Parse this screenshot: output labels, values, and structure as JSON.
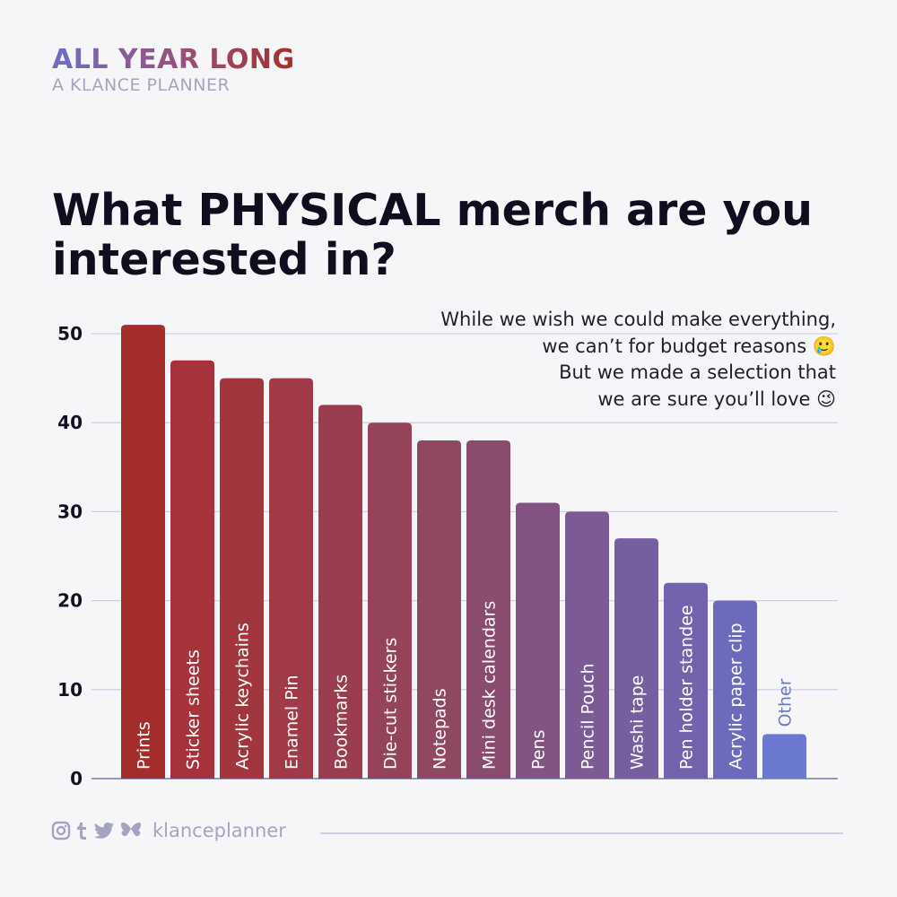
{
  "brand": {
    "title": "ALL YEAR LONG",
    "subtitle": "A KLANCE PLANNER"
  },
  "title": "What PHYSICAL merch are you interested in?",
  "note": {
    "lines": [
      "While we wish we could make everything,",
      "we can’t for budget reasons 🥲",
      "But we made a selection that",
      "we are sure you’ll love 😉"
    ]
  },
  "chart_data": {
    "type": "bar",
    "categories": [
      "Prints",
      "Sticker sheets",
      "Acrylic keychains",
      "Enamel Pin",
      "Bookmarks",
      "Die-cut stickers",
      "Notepads",
      "Mini desk calendars",
      "Pens",
      "Pencil Pouch",
      "Washi tape",
      "Pen holder standee",
      "Acrylic paper clip",
      "Other"
    ],
    "values": [
      51,
      47,
      45,
      45,
      42,
      40,
      38,
      38,
      31,
      30,
      27,
      22,
      20,
      5
    ],
    "ylim": [
      0,
      50
    ],
    "yticks": [
      0,
      10,
      20,
      30,
      40,
      50
    ],
    "grid": true,
    "colors": [
      "#a32d2a",
      "#a6323b",
      "#a2363f",
      "#a03a46",
      "#9a3e4f",
      "#944358",
      "#8f4862",
      "#8a4c6e",
      "#835382",
      "#7c5b95",
      "#775f9f",
      "#7362ac",
      "#6c6bbb",
      "#6b79cf"
    ]
  },
  "footer": {
    "handle": "klanceplanner",
    "icons": [
      "instagram-icon",
      "tumblr-icon",
      "twitter-icon",
      "bluesky-icon"
    ]
  },
  "colors": {
    "background": "#f6f6f9",
    "grid": "#d0d0e4",
    "muted": "#a4a4c0"
  }
}
